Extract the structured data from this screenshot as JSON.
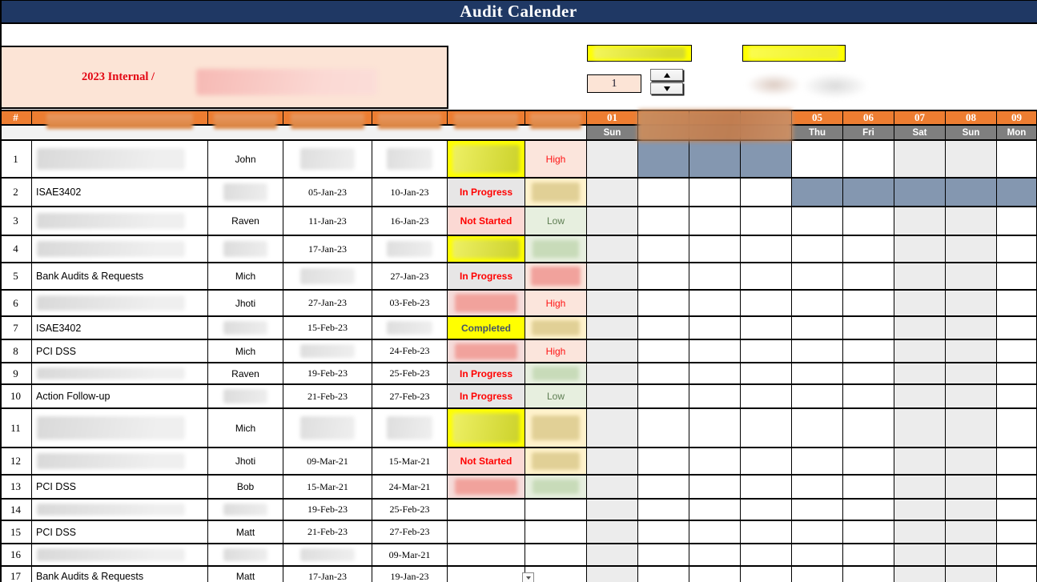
{
  "title": "Audit Calender",
  "period": {
    "label": "2023 Internal /"
  },
  "controls": {
    "spinner_value": "1"
  },
  "colors": {
    "title_bar": "#1F3864",
    "header_orange": "#ED7D31",
    "day_strip_gray": "#7F7F7F",
    "weekend_shade": "#ECECEC",
    "gantt_bar_blue": "#8497B0",
    "period_box": "#FCE4D6",
    "highlight_yellow": "#FFFF00",
    "status_red_text": "#FF0000",
    "completed_text": "#44546A",
    "low_green_text": "#5E7E52"
  },
  "table": {
    "index_header": "#",
    "rows": [
      {
        "n": "1",
        "name": null,
        "person": "John",
        "start": null,
        "end": null,
        "status": {
          "label": null,
          "style": "yellow"
        },
        "crit": {
          "label": "High",
          "style": "high"
        },
        "bar": {
          "from": 2,
          "to": 4
        }
      },
      {
        "n": "2",
        "name": "ISAE3402",
        "person": null,
        "start": "05-Jan-23",
        "end": "10-Jan-23",
        "status": {
          "label": "In Progress",
          "style": "in-progress"
        },
        "crit": {
          "label": null,
          "style": "tan"
        },
        "bar": {
          "from": 5,
          "to": 9
        }
      },
      {
        "n": "3",
        "name": null,
        "person": "Raven",
        "start": "11-Jan-23",
        "end": "16-Jan-23",
        "status": {
          "label": "Not Started",
          "style": "not-started"
        },
        "crit": {
          "label": "Low",
          "style": "low"
        },
        "bar": null
      },
      {
        "n": "4",
        "name": null,
        "person": null,
        "start": "17-Jan-23",
        "end": null,
        "status": {
          "label": null,
          "style": "yellow"
        },
        "crit": {
          "label": null,
          "style": "green"
        },
        "bar": null
      },
      {
        "n": "5",
        "name": "Bank Audits & Requests",
        "person": "Mich",
        "start": null,
        "end": "27-Jan-23",
        "status": {
          "label": "In Progress",
          "style": "in-progress"
        },
        "crit": {
          "label": null,
          "style": "pink"
        },
        "bar": null
      },
      {
        "n": "6",
        "name": null,
        "person": "Jhoti",
        "start": "27-Jan-23",
        "end": "03-Feb-23",
        "status": {
          "label": null,
          "style": "pink"
        },
        "crit": {
          "label": "High",
          "style": "high"
        },
        "bar": null
      },
      {
        "n": "7",
        "name": "ISAE3402",
        "person": null,
        "start": "15-Feb-23",
        "end": null,
        "status": {
          "label": "Completed",
          "style": "completed"
        },
        "crit": {
          "label": null,
          "style": "tan"
        },
        "bar": null
      },
      {
        "n": "8",
        "name": "PCI DSS",
        "person": "Mich",
        "start": null,
        "end": "24-Feb-23",
        "status": {
          "label": null,
          "style": "pink"
        },
        "crit": {
          "label": "High",
          "style": "high"
        },
        "bar": null
      },
      {
        "n": "9",
        "name": null,
        "person": "Raven",
        "start": "19-Feb-23",
        "end": "25-Feb-23",
        "status": {
          "label": "In Progress",
          "style": "in-progress"
        },
        "crit": {
          "label": null,
          "style": "green"
        },
        "bar": null
      },
      {
        "n": "10",
        "name": "Action Follow-up",
        "person": null,
        "start": "21-Feb-23",
        "end": "27-Feb-23",
        "status": {
          "label": "In Progress",
          "style": "in-progress"
        },
        "crit": {
          "label": "Low",
          "style": "low"
        },
        "bar": null
      },
      {
        "n": "11",
        "name": null,
        "person": "Mich",
        "start": null,
        "end": null,
        "status": {
          "label": null,
          "style": "yellow"
        },
        "crit": {
          "label": null,
          "style": "tan"
        },
        "bar": null
      },
      {
        "n": "12",
        "name": null,
        "person": "Jhoti",
        "start": "09-Mar-21",
        "end": "15-Mar-21",
        "status": {
          "label": "Not Started",
          "style": "not-started"
        },
        "crit": {
          "label": null,
          "style": "tan"
        },
        "bar": null
      },
      {
        "n": "13",
        "name": "PCI DSS",
        "person": "Bob",
        "start": "15-Mar-21",
        "end": "24-Mar-21",
        "status": {
          "label": null,
          "style": "pink"
        },
        "crit": {
          "label": null,
          "style": "green"
        },
        "bar": null
      },
      {
        "n": "14",
        "name": null,
        "person": null,
        "start": "19-Feb-23",
        "end": "25-Feb-23",
        "status": null,
        "crit": null,
        "bar": null
      },
      {
        "n": "15",
        "name": "PCI DSS",
        "person": "Matt",
        "start": "21-Feb-23",
        "end": "27-Feb-23",
        "status": null,
        "crit": null,
        "bar": null
      },
      {
        "n": "16",
        "name": null,
        "person": null,
        "start": null,
        "end": "09-Mar-21",
        "status": null,
        "crit": null,
        "bar": null
      },
      {
        "n": "17",
        "name": "Bank Audits & Requests",
        "person": "Matt",
        "start": "17-Jan-23",
        "end": "19-Jan-23",
        "status": null,
        "crit": null,
        "bar": null,
        "dropdown": true
      }
    ]
  },
  "calendar": {
    "dates": [
      "01",
      null,
      null,
      null,
      "05",
      "06",
      "07",
      "08",
      "09"
    ],
    "days": [
      "Sun",
      null,
      null,
      null,
      "Thu",
      "Fri",
      "Sat",
      "Sun",
      "Mon"
    ],
    "weekend_columns": [
      1,
      7,
      8
    ],
    "bars": [
      {
        "row": "1",
        "from_day": 2,
        "to_day": 4
      },
      {
        "row": "2",
        "from_day": 5,
        "to_day": 9
      }
    ]
  }
}
